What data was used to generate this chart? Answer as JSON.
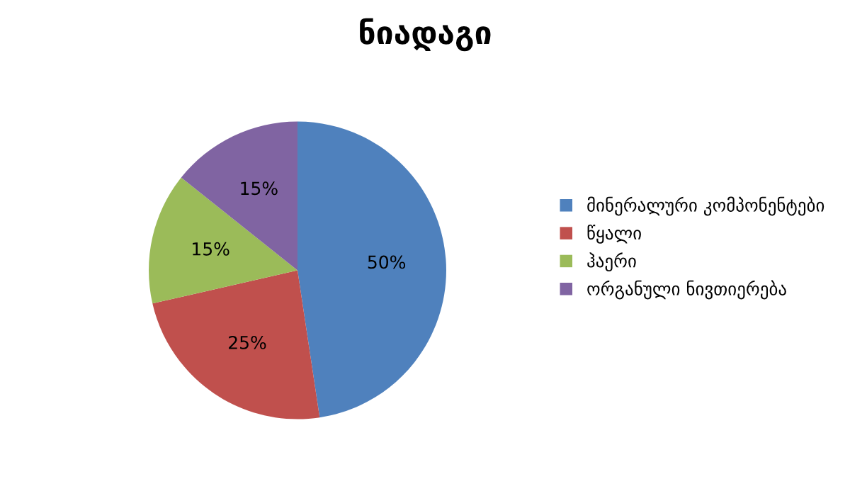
{
  "chart_data": {
    "type": "pie",
    "title": "ნიადაგი",
    "categories": [
      "მინერალური კომპონენტები",
      "წყალი",
      "ჰაერი",
      "ორგანული ნივთიერება"
    ],
    "values": [
      50,
      25,
      15,
      15
    ],
    "value_labels": [
      "50%",
      "25%",
      "15%",
      "15%"
    ],
    "colors": [
      "#4f81bd",
      "#c0504d",
      "#9bbb59",
      "#8064a2"
    ],
    "legend": "right"
  }
}
